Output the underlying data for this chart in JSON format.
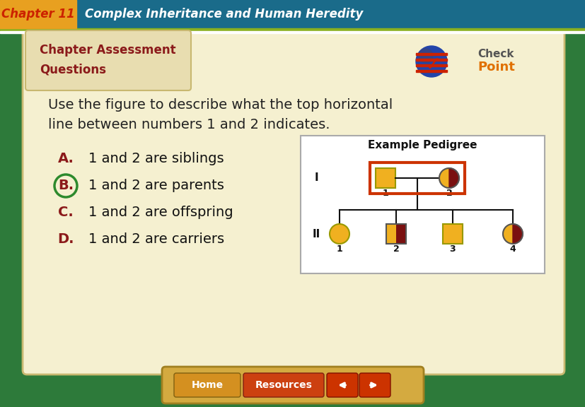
{
  "header_bg": "#1a6b8a",
  "header_chapter_bg": "#e8a020",
  "header_chapter_text": "Chapter 11",
  "header_chapter_color": "#cc2200",
  "header_title": "Complex Inheritance and Human Heredity",
  "header_title_color": "#ffffff",
  "outer_bg": "#2d7a3a",
  "inner_bg": "#f5f0d0",
  "tab_bg": "#e8ddb0",
  "section_title_line1": "Chapter Assessment",
  "section_title_line2": "Questions",
  "section_title_color": "#8b1a1a",
  "question_text_line1": "Use the figure to describe what the top horizontal",
  "question_text_line2": "line between numbers 1 and 2 indicates.",
  "question_color": "#222222",
  "choices": [
    "1 and 2 are siblings",
    "1 and 2 are parents",
    "1 and 2 are offspring",
    "1 and 2 are carriers"
  ],
  "choice_letters": [
    "A",
    "B",
    "C",
    "D"
  ],
  "choice_letter_color": "#8b1a1a",
  "correct_choice": 1,
  "correct_circle_color": "#2d8a2d",
  "pedigree_title": "Example Pedigree",
  "pedigree_bg": "#ffffff",
  "highlight_border": "#cc3300",
  "yellow_color": "#f0b020",
  "dark_red_color": "#7a1010",
  "home_btn_color": "#d49020",
  "resources_btn_color": "#cc4010",
  "nav_btn_color": "#cc3300",
  "btn_bar_bg": "#d4aa40",
  "separator_green": "#8ab020",
  "separator_white": "#ffffff"
}
